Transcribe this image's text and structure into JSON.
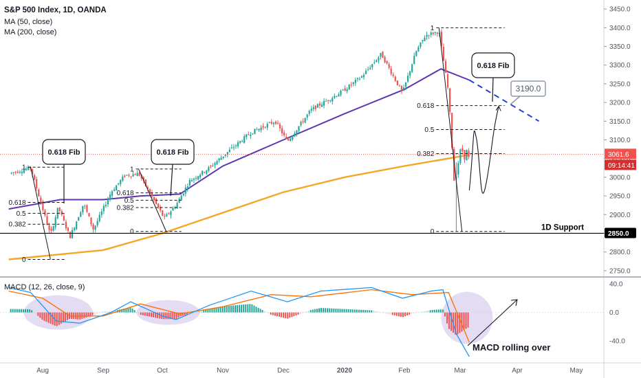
{
  "header": {
    "title": "S&P 500 Index, 1D, OANDA",
    "indicators": [
      "MA (50, close)",
      "MA (200, close)"
    ],
    "macd_label": "MACD (12, 26, close, 9)"
  },
  "price_axis": {
    "ticks": [
      "3450.0",
      "3400.0",
      "3350.0",
      "3300.0",
      "3250.0",
      "3200.0",
      "3150.0",
      "3100.0",
      "3050.0",
      "3000.0",
      "2950.0",
      "2900.0",
      "2850.0",
      "2800.0",
      "2750.0"
    ],
    "current_price": "3061.6",
    "countdown": "09:14:41",
    "support_price": "2850.0"
  },
  "macd_axis": {
    "ticks": [
      "40.0",
      "0.0",
      "-40.0"
    ]
  },
  "time_axis": {
    "labels": [
      "Aug",
      "Sep",
      "Oct",
      "Nov",
      "Dec",
      "2020",
      "Feb",
      "Mar",
      "Apr",
      "May"
    ]
  },
  "annotations": {
    "fib_callout_1": "0.618 Fib",
    "fib_callout_2": "0.618 Fib",
    "fib_callout_3": "0.618 Fib",
    "target_price": "3190.0",
    "support_label": "1D Support",
    "macd_text": "MACD rolling over"
  },
  "fib_levels": {
    "left": [
      "1",
      "0.618",
      "0.5",
      "0.382",
      "0"
    ],
    "middle": [
      "1",
      "0.618",
      "0.5",
      "0.382",
      "0"
    ],
    "right": [
      "1",
      "0.618",
      "0.5",
      "0.382",
      "0"
    ]
  },
  "colors": {
    "up": "#26a69a",
    "down": "#ef5350",
    "ma50": "#5e35b1",
    "ma200": "#f5a623",
    "macd_line": "#2196f3",
    "signal_line": "#ff6d00",
    "projection": "#1e40d6",
    "current_price_tag": "#ef5350",
    "countdown_tag": "#d32f2f",
    "highlight": "#d1c4e9"
  },
  "chart_data": {
    "type": "candlestick",
    "title": "S&P 500 Index, 1D, OANDA",
    "ylim": [
      2735,
      3465
    ],
    "price_path": [
      [
        "Jul 15",
        3010
      ],
      [
        "Jul 26",
        3025
      ],
      [
        "Aug 5",
        2845
      ],
      [
        "Aug 9",
        2920
      ],
      [
        "Aug 15",
        2840
      ],
      [
        "Aug 22",
        2930
      ],
      [
        "Aug 27",
        2860
      ],
      [
        "Sep 5",
        2960
      ],
      [
        "Sep 12",
        3005
      ],
      [
        "Sep 19",
        3010
      ],
      [
        "Oct 2",
        2890
      ],
      [
        "Oct 8",
        2925
      ],
      [
        "Oct 15",
        2990
      ],
      [
        "Oct 25",
        3025
      ],
      [
        "Nov 5",
        3075
      ],
      [
        "Nov 15",
        3120
      ],
      [
        "Nov 27",
        3150
      ],
      [
        "Dec 3",
        3095
      ],
      [
        "Dec 15",
        3180
      ],
      [
        "Dec 31",
        3230
      ],
      [
        "Jan 10",
        3270
      ],
      [
        "Jan 20",
        3330
      ],
      [
        "Jan 31",
        3225
      ],
      [
        "Feb 7",
        3335
      ],
      [
        "Feb 12",
        3380
      ],
      [
        "Feb 19",
        3390
      ],
      [
        "Feb 24",
        3225
      ],
      [
        "Feb 27",
        2980
      ],
      [
        "Mar 2",
        3095
      ],
      [
        "Mar 3",
        3005
      ],
      [
        "Mar 4",
        3120
      ],
      [
        "Mar 5",
        3030
      ],
      [
        "Mar 6",
        3061.6
      ]
    ],
    "ma50_path": [
      [
        "Jul 15",
        2915
      ],
      [
        "Aug 10",
        2940
      ],
      [
        "Sep 1",
        2940
      ],
      [
        "Sep 20",
        2950
      ],
      [
        "Oct 10",
        2955
      ],
      [
        "Nov 1",
        3030
      ],
      [
        "Dec 1",
        3100
      ],
      [
        "Jan 1",
        3170
      ],
      [
        "Feb 1",
        3235
      ],
      [
        "Feb 20",
        3290
      ],
      [
        "Mar 6",
        3260
      ]
    ],
    "ma200_path": [
      [
        "Jul 15",
        2780
      ],
      [
        "Sep 1",
        2805
      ],
      [
        "Oct 1",
        2850
      ],
      [
        "Nov 1",
        2905
      ],
      [
        "Dec 1",
        2960
      ],
      [
        "Jan 1",
        3000
      ],
      [
        "Feb 1",
        3030
      ],
      [
        "Mar 6",
        3060
      ]
    ],
    "projection_path": [
      [
        "Mar 6",
        2965
      ],
      [
        "Mar 10",
        3100
      ],
      [
        "Mar 15",
        2980
      ],
      [
        "Mar 22",
        3190
      ]
    ],
    "ma50_projection": [
      [
        "Mar 6",
        3260
      ],
      [
        "Apr 12",
        3150
      ]
    ],
    "support_level": 2850,
    "fib_retracements": [
      {
        "from": [
          "Jul 26",
          3027
        ],
        "to": [
          "Aug 5",
          2780
        ],
        "levels": [
          0,
          0.382,
          0.5,
          0.618,
          1
        ]
      },
      {
        "from": [
          "Sep 19",
          3022
        ],
        "to": [
          "Oct 3",
          2855
        ],
        "levels": [
          0,
          0.382,
          0.5,
          0.618,
          1
        ]
      },
      {
        "from": [
          "Feb 19",
          3400
        ],
        "to": [
          "Mar 2",
          2855
        ],
        "levels": [
          0,
          0.382,
          0.5,
          0.618,
          1
        ]
      }
    ],
    "macd": {
      "ylim": [
        -65,
        45
      ],
      "macd_line": [
        [
          "Jul 15",
          35
        ],
        [
          "Jul 26",
          28
        ],
        [
          "Aug 8",
          -12
        ],
        [
          "Aug 20",
          -15
        ],
        [
          "Sep 5",
          0
        ],
        [
          "Sep 15",
          15
        ],
        [
          "Oct 1",
          -5
        ],
        [
          "Oct 8",
          -10
        ],
        [
          "Oct 25",
          10
        ],
        [
          "Nov 15",
          30
        ],
        [
          "Dec 3",
          15
        ],
        [
          "Dec 20",
          30
        ],
        [
          "Jan 15",
          35
        ],
        [
          "Jan 31",
          20
        ],
        [
          "Feb 15",
          30
        ],
        [
          "Feb 21",
          32
        ],
        [
          "Feb 28",
          -30
        ],
        [
          "Mar 6",
          -62
        ]
      ],
      "signal_line": [
        [
          "Jul 15",
          30
        ],
        [
          "Aug 1",
          20
        ],
        [
          "Aug 15",
          -5
        ],
        [
          "Sep 1",
          -5
        ],
        [
          "Sep 20",
          12
        ],
        [
          "Oct 10",
          -2
        ],
        [
          "Nov 1",
          8
        ],
        [
          "Nov 25",
          25
        ],
        [
          "Dec 15",
          22
        ],
        [
          "Jan 15",
          32
        ],
        [
          "Feb 5",
          25
        ],
        [
          "Feb 24",
          28
        ],
        [
          "Mar 6",
          -42
        ]
      ]
    },
    "x_ticks": [
      "Aug",
      "Sep",
      "Oct",
      "Nov",
      "Dec",
      "2020",
      "Feb",
      "Mar",
      "Apr",
      "May"
    ],
    "y_ticks": [
      3450,
      3400,
      3350,
      3300,
      3250,
      3200,
      3150,
      3100,
      3050,
      3000,
      2950,
      2900,
      2850,
      2800,
      2750
    ]
  }
}
